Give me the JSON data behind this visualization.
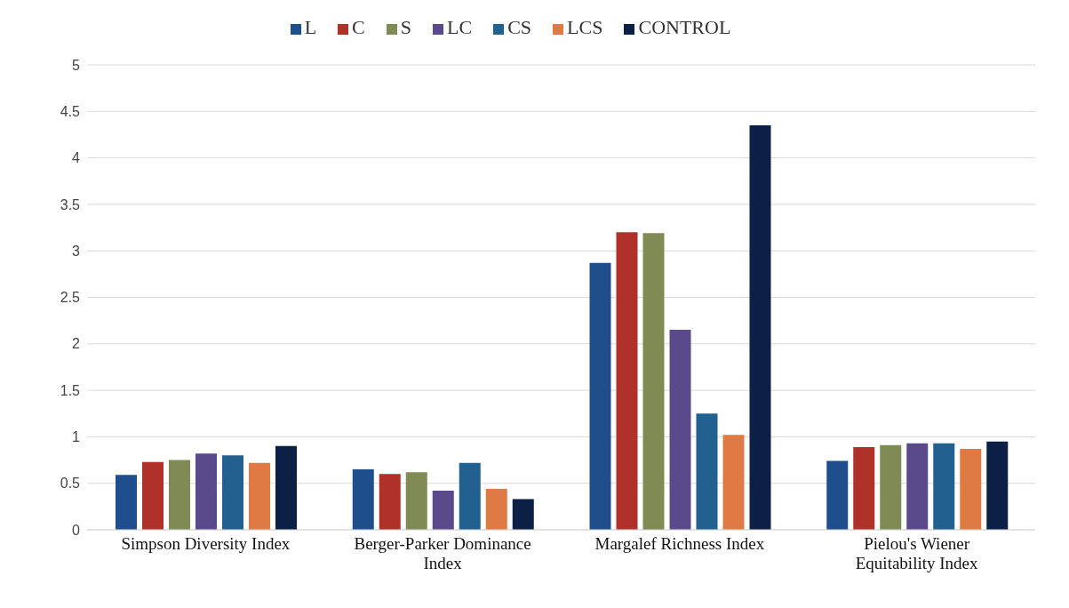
{
  "chart_data": {
    "type": "bar",
    "categories": [
      "Simpson Diversity Index",
      "Berger-Parker Dominance Index",
      "Margalef Richness Index",
      "Pielou's Wiener Equitability Index"
    ],
    "series": [
      {
        "name": "L",
        "color": "#1f4e8c",
        "values": [
          0.59,
          0.65,
          2.87,
          0.74
        ]
      },
      {
        "name": "C",
        "color": "#b0302a",
        "values": [
          0.73,
          0.6,
          3.2,
          0.89
        ]
      },
      {
        "name": "S",
        "color": "#7f8a55",
        "values": [
          0.75,
          0.62,
          3.19,
          0.91
        ]
      },
      {
        "name": "LC",
        "color": "#5a4a8c",
        "values": [
          0.82,
          0.42,
          2.15,
          0.93
        ]
      },
      {
        "name": "CS",
        "color": "#21608f",
        "values": [
          0.8,
          0.72,
          1.25,
          0.93
        ]
      },
      {
        "name": "LCS",
        "color": "#e07a45",
        "values": [
          0.72,
          0.44,
          1.02,
          0.87
        ]
      },
      {
        "name": "CONTROL",
        "color": "#0c1f45",
        "values": [
          0.9,
          0.33,
          4.35,
          0.95
        ]
      }
    ],
    "ylim": [
      0,
      5
    ],
    "yticks": [
      0,
      0.5,
      1,
      1.5,
      2,
      2.5,
      3,
      3.5,
      4,
      4.5,
      5
    ],
    "grid": "y",
    "legend": "top"
  }
}
